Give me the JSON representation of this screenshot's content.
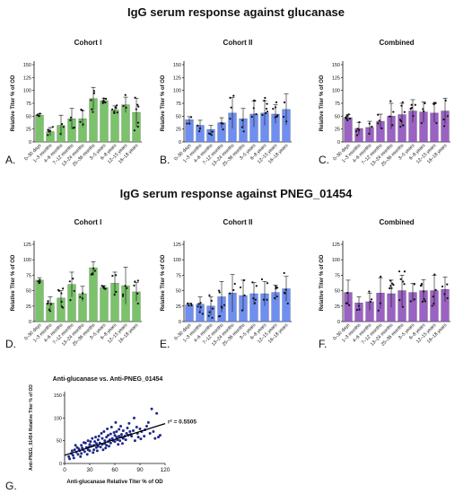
{
  "section_titles": [
    "IgG serum response against glucanase",
    "IgG serum response against PNEG_01454"
  ],
  "panel_letters": [
    "A.",
    "B.",
    "C.",
    "D.",
    "E.",
    "F.",
    "G."
  ],
  "colors": {
    "cohort1": "#7bc26b",
    "cohort2": "#6f8ff0",
    "combined": "#9a62c2",
    "points": "#1f2a8a",
    "fit": "#000000"
  },
  "chart_data": [
    {
      "id": "A",
      "type": "bar",
      "title": "Cohort I",
      "ylabel": "Relative Titer % of OD",
      "ylim": [
        0,
        150
      ],
      "yticks": [
        0,
        25,
        50,
        75,
        100,
        125,
        150
      ],
      "color_key": "cohort1",
      "categories": [
        "0–30 days",
        "1–3 months",
        "4–6 months",
        "7–12 months",
        "13–24 months",
        "25–36 months",
        "3–5 years",
        "6–8 years",
        "12–15 years",
        "16–18 years"
      ],
      "values": [
        52,
        20,
        32,
        45,
        45,
        84,
        80,
        62,
        72,
        57
      ],
      "errors": [
        3,
        8,
        20,
        20,
        16,
        22,
        5,
        8,
        15,
        28
      ]
    },
    {
      "id": "B",
      "type": "bar",
      "title": "Cohort II",
      "ylabel": "Relative Titer % of OD",
      "ylim": [
        0,
        150
      ],
      "yticks": [
        0,
        25,
        50,
        75,
        100,
        125,
        150
      ],
      "color_key": "cohort2",
      "categories": [
        "0–30 days",
        "1–3 months",
        "4–6 months",
        "7–12 months",
        "13–24 months",
        "25–36 months",
        "3–5 years",
        "6–8 years",
        "12–15 years",
        "16–18 years"
      ],
      "values": [
        43,
        32,
        24,
        37,
        56,
        45,
        54,
        56,
        54,
        63
      ],
      "errors": [
        6,
        10,
        8,
        10,
        30,
        20,
        25,
        24,
        18,
        30
      ]
    },
    {
      "id": "C",
      "type": "bar",
      "title": "Combined",
      "ylabel": "Relative Titer % of OD",
      "ylim": [
        0,
        150
      ],
      "yticks": [
        0,
        25,
        50,
        75,
        100,
        125,
        150
      ],
      "color_key": "combined",
      "categories": [
        "0–30 days",
        "1–3 months",
        "4–6 months",
        "7–12 months",
        "13–24 months",
        "25–36 months",
        "3–5 years",
        "6–8 years",
        "12–15 years",
        "16–18 years"
      ],
      "values": [
        47,
        26,
        28,
        40,
        50,
        53,
        60,
        58,
        56,
        60
      ],
      "errors": [
        6,
        12,
        12,
        14,
        25,
        22,
        22,
        20,
        18,
        25
      ]
    },
    {
      "id": "D",
      "type": "bar",
      "title": "Cohort I",
      "ylabel": "Relative Titer % of OD",
      "ylim": [
        0,
        125
      ],
      "yticks": [
        0,
        25,
        50,
        75,
        100,
        125
      ],
      "color_key": "cohort1",
      "categories": [
        "0–30 days",
        "1–3 months",
        "4–6 months",
        "7–12 months",
        "13–24 months",
        "25–36 months",
        "3–5 years",
        "6–8 years",
        "12–15 years",
        "16–18 years"
      ],
      "values": [
        67,
        30,
        38,
        60,
        45,
        87,
        55,
        62,
        58,
        48
      ],
      "errors": [
        4,
        10,
        12,
        20,
        12,
        10,
        3,
        18,
        30,
        15
      ]
    },
    {
      "id": "E",
      "type": "bar",
      "title": "Cohort II",
      "ylabel": "Relative Titer % of OD",
      "ylim": [
        0,
        125
      ],
      "yticks": [
        0,
        25,
        50,
        75,
        100,
        125
      ],
      "color_key": "cohort2",
      "categories": [
        "0–30 days",
        "1–3 months",
        "4–6 months",
        "7–12 months",
        "13–24 months",
        "25–36 months",
        "3–5 years",
        "6–8 years",
        "12–15 years",
        "16–18 years"
      ],
      "values": [
        27,
        28,
        25,
        40,
        46,
        42,
        45,
        45,
        47,
        53
      ],
      "errors": [
        3,
        12,
        15,
        25,
        30,
        25,
        18,
        20,
        12,
        20
      ]
    },
    {
      "id": "F",
      "type": "bar",
      "title": "Combined",
      "ylabel": "Relative Titer % of OD",
      "ylim": [
        0,
        125
      ],
      "yticks": [
        0,
        25,
        50,
        75,
        100,
        125
      ],
      "color_key": "combined",
      "categories": [
        "0–30 days",
        "1–3 months",
        "4–6 months",
        "7–12 months",
        "13–24 months",
        "25–36 months",
        "3–5 years",
        "6–8 years",
        "12–15 years",
        "16–18 years"
      ],
      "values": [
        47,
        30,
        32,
        46,
        45,
        50,
        47,
        50,
        50,
        52
      ],
      "errors": [
        20,
        10,
        14,
        25,
        22,
        25,
        15,
        18,
        25,
        20
      ]
    },
    {
      "id": "G",
      "type": "scatter",
      "title": "Anti-glucanase vs. Anti-PNEG_01454",
      "xlabel": "Anti-glucanase Relative Titer % of OD",
      "ylabel": "Anti-PNEG_01454 Relative Titer % of OD",
      "xlim": [
        0,
        120
      ],
      "ylim": [
        0,
        150
      ],
      "xticks": [
        0,
        30,
        60,
        90,
        120
      ],
      "yticks": [
        0,
        50,
        100,
        150
      ],
      "annotation": "r² = 0.5505",
      "fit": {
        "slope": 0.58,
        "intercept": 18
      },
      "points": [
        [
          5,
          15
        ],
        [
          8,
          22
        ],
        [
          10,
          18
        ],
        [
          12,
          30
        ],
        [
          14,
          25
        ],
        [
          15,
          35
        ],
        [
          16,
          20
        ],
        [
          18,
          28
        ],
        [
          20,
          40
        ],
        [
          20,
          22
        ],
        [
          22,
          30
        ],
        [
          24,
          26
        ],
        [
          25,
          45
        ],
        [
          26,
          35
        ],
        [
          28,
          30
        ],
        [
          28,
          50
        ],
        [
          30,
          42
        ],
        [
          30,
          28
        ],
        [
          32,
          38
        ],
        [
          33,
          55
        ],
        [
          35,
          40
        ],
        [
          35,
          30
        ],
        [
          36,
          48
        ],
        [
          38,
          44
        ],
        [
          38,
          35
        ],
        [
          40,
          52
        ],
        [
          40,
          38
        ],
        [
          41,
          60
        ],
        [
          42,
          45
        ],
        [
          43,
          36
        ],
        [
          45,
          55
        ],
        [
          45,
          42
        ],
        [
          46,
          30
        ],
        [
          47,
          70
        ],
        [
          48,
          50
        ],
        [
          48,
          44
        ],
        [
          50,
          58
        ],
        [
          50,
          40
        ],
        [
          52,
          62
        ],
        [
          52,
          48
        ],
        [
          54,
          52
        ],
        [
          55,
          65
        ],
        [
          55,
          45
        ],
        [
          56,
          80
        ],
        [
          57,
          55
        ],
        [
          58,
          50
        ],
        [
          60,
          62
        ],
        [
          60,
          48
        ],
        [
          62,
          70
        ],
        [
          62,
          58
        ],
        [
          63,
          52
        ],
        [
          65,
          60
        ],
        [
          65,
          75
        ],
        [
          66,
          50
        ],
        [
          68,
          64
        ],
        [
          68,
          58
        ],
        [
          70,
          55
        ],
        [
          70,
          72
        ],
        [
          72,
          60
        ],
        [
          74,
          66
        ],
        [
          75,
          78
        ],
        [
          76,
          62
        ],
        [
          78,
          70
        ],
        [
          80,
          60
        ],
        [
          82,
          72
        ],
        [
          84,
          50
        ],
        [
          86,
          80
        ],
        [
          88,
          58
        ],
        [
          90,
          76
        ],
        [
          92,
          70
        ],
        [
          95,
          60
        ],
        [
          98,
          82
        ],
        [
          100,
          90
        ],
        [
          102,
          66
        ],
        [
          104,
          120
        ],
        [
          106,
          70
        ],
        [
          108,
          55
        ],
        [
          110,
          110
        ],
        [
          112,
          58
        ],
        [
          114,
          62
        ],
        [
          6,
          10
        ],
        [
          9,
          28
        ],
        [
          11,
          12
        ],
        [
          13,
          40
        ],
        [
          17,
          32
        ],
        [
          19,
          15
        ],
        [
          21,
          34
        ],
        [
          23,
          46
        ],
        [
          27,
          20
        ],
        [
          29,
          36
        ],
        [
          31,
          48
        ],
        [
          34,
          24
        ],
        [
          37,
          58
        ],
        [
          39,
          28
        ],
        [
          44,
          66
        ],
        [
          49,
          34
        ],
        [
          51,
          76
        ],
        [
          53,
          38
        ],
        [
          59,
          68
        ],
        [
          61,
          90
        ],
        [
          64,
          42
        ],
        [
          67,
          82
        ],
        [
          69,
          44
        ],
        [
          73,
          52
        ],
        [
          77,
          88
        ],
        [
          79,
          64
        ],
        [
          83,
          100
        ],
        [
          87,
          66
        ],
        [
          91,
          54
        ],
        [
          96,
          74
        ]
      ]
    }
  ]
}
